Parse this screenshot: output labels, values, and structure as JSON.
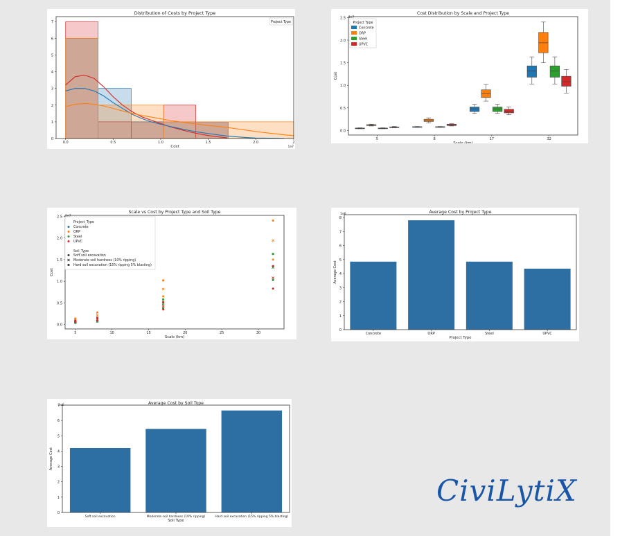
{
  "brand": {
    "logo_text": "CiviLytiX"
  },
  "colors": {
    "Concrete": "#1f77b4",
    "ORP": "#ff7f0e",
    "Steel": "#2ca02c",
    "UPVC": "#d62728",
    "bar": "#2e6fa3"
  },
  "chart_data": [
    {
      "type": "histogram",
      "title": "Distribution of Costs by Project Type",
      "xlabel": "Cost",
      "ylabel": "",
      "x_exponent": "1e7",
      "xlim": [
        -0.1,
        2.4
      ],
      "ylim": [
        0,
        7.3
      ],
      "xticks": [
        "0.0",
        "0.5",
        "1.0",
        "1.5",
        "2.0",
        "2"
      ],
      "xtick_values": [
        0,
        0.5,
        1.0,
        1.5,
        2.0,
        2.4
      ],
      "yticks": [
        0,
        1,
        2,
        3,
        4,
        5,
        6,
        7
      ],
      "legend_title": "Project Type",
      "series": [
        {
          "name": "UPVC",
          "color": "#d62728",
          "bins": [
            [
              0,
              0.34,
              7
            ],
            [
              0.34,
              1.03,
              1
            ],
            [
              1.03,
              1.37,
              2
            ],
            [
              1.37,
              1.71,
              1
            ]
          ],
          "kde": [
            [
              0,
              3.2
            ],
            [
              0.1,
              3.7
            ],
            [
              0.2,
              3.8
            ],
            [
              0.3,
              3.6
            ],
            [
              0.4,
              3.1
            ],
            [
              0.5,
              2.5
            ],
            [
              0.6,
              2.0
            ],
            [
              0.7,
              1.6
            ],
            [
              0.8,
              1.3
            ],
            [
              0.9,
              1.1
            ],
            [
              1.0,
              0.9
            ],
            [
              1.1,
              0.7
            ],
            [
              1.2,
              0.55
            ],
            [
              1.3,
              0.4
            ],
            [
              1.4,
              0.28
            ],
            [
              1.5,
              0.18
            ],
            [
              1.6,
              0.1
            ],
            [
              1.7,
              0.04
            ]
          ]
        },
        {
          "name": "Concrete",
          "color": "#1f77b4",
          "bins": [
            [
              0,
              0.34,
              6
            ],
            [
              0.34,
              0.69,
              3
            ],
            [
              0.69,
              1.03,
              1
            ],
            [
              1.03,
              1.71,
              1
            ]
          ],
          "kde": [
            [
              0,
              2.85
            ],
            [
              0.1,
              3.0
            ],
            [
              0.2,
              3.0
            ],
            [
              0.3,
              2.85
            ],
            [
              0.4,
              2.55
            ],
            [
              0.5,
              2.15
            ],
            [
              0.6,
              1.8
            ],
            [
              0.7,
              1.45
            ],
            [
              0.8,
              1.2
            ],
            [
              0.9,
              1.0
            ],
            [
              1.0,
              0.85
            ],
            [
              1.1,
              0.72
            ],
            [
              1.2,
              0.6
            ],
            [
              1.3,
              0.48
            ],
            [
              1.4,
              0.38
            ],
            [
              1.5,
              0.3
            ],
            [
              1.6,
              0.22
            ],
            [
              1.7,
              0.15
            ],
            [
              1.8,
              0.1
            ],
            [
              1.9,
              0.06
            ],
            [
              2.0,
              0.03
            ],
            [
              2.3,
              0.01
            ]
          ]
        },
        {
          "name": "ORP",
          "color": "#ff7f0e",
          "bins": [
            [
              0,
              0.34,
              6
            ],
            [
              0.34,
              1.03,
              2
            ],
            [
              1.03,
              1.71,
              1
            ],
            [
              1.71,
              2.4,
              1
            ]
          ],
          "kde": [
            [
              0,
              1.9
            ],
            [
              0.1,
              2.05
            ],
            [
              0.2,
              2.1
            ],
            [
              0.3,
              2.05
            ],
            [
              0.4,
              1.95
            ],
            [
              0.5,
              1.8
            ],
            [
              0.6,
              1.65
            ],
            [
              0.7,
              1.5
            ],
            [
              0.8,
              1.38
            ],
            [
              0.9,
              1.28
            ],
            [
              1.0,
              1.18
            ],
            [
              1.1,
              1.08
            ],
            [
              1.2,
              1.0
            ],
            [
              1.3,
              0.92
            ],
            [
              1.4,
              0.85
            ],
            [
              1.5,
              0.78
            ],
            [
              1.6,
              0.72
            ],
            [
              1.7,
              0.66
            ],
            [
              1.8,
              0.58
            ],
            [
              1.9,
              0.5
            ],
            [
              2.0,
              0.42
            ],
            [
              2.1,
              0.35
            ],
            [
              2.2,
              0.28
            ],
            [
              2.3,
              0.22
            ],
            [
              2.4,
              0.17
            ]
          ]
        }
      ]
    },
    {
      "type": "box",
      "title": "Cost Distribution by Scale and Project Type",
      "xlabel": "Scale (km)",
      "ylabel": "Cost",
      "y_exponent": "1e7",
      "ylim": [
        -0.1,
        2.52
      ],
      "yticks": [
        "0.0",
        "0.5",
        "1.0",
        "1.5",
        "2.0",
        "2.5"
      ],
      "ytick_values": [
        0,
        0.5,
        1.0,
        1.5,
        2.0,
        2.5
      ],
      "categories": [
        "5",
        "8",
        "17",
        "32"
      ],
      "legend_title": "Project Type",
      "series_names": [
        "Concrete",
        "ORP",
        "Steel",
        "UPVC"
      ],
      "boxes": [
        {
          "category": "5",
          "series": "Concrete",
          "stats": [
            0.04,
            0.045,
            0.05,
            0.055,
            0.06
          ]
        },
        {
          "category": "5",
          "series": "ORP",
          "stats": [
            0.1,
            0.11,
            0.12,
            0.13,
            0.14
          ]
        },
        {
          "category": "5",
          "series": "Steel",
          "stats": [
            0.04,
            0.045,
            0.05,
            0.055,
            0.06
          ]
        },
        {
          "category": "5",
          "series": "UPVC",
          "stats": [
            0.06,
            0.065,
            0.075,
            0.08,
            0.09
          ]
        },
        {
          "category": "8",
          "series": "Concrete",
          "stats": [
            0.07,
            0.075,
            0.08,
            0.085,
            0.09
          ]
        },
        {
          "category": "8",
          "series": "ORP",
          "stats": [
            0.17,
            0.2,
            0.22,
            0.25,
            0.28
          ]
        },
        {
          "category": "8",
          "series": "Steel",
          "stats": [
            0.07,
            0.075,
            0.08,
            0.085,
            0.09
          ]
        },
        {
          "category": "8",
          "series": "UPVC",
          "stats": [
            0.1,
            0.11,
            0.12,
            0.14,
            0.15
          ]
        },
        {
          "category": "17",
          "series": "Concrete",
          "stats": [
            0.38,
            0.42,
            0.48,
            0.52,
            0.58
          ]
        },
        {
          "category": "17",
          "series": "ORP",
          "stats": [
            0.65,
            0.73,
            0.82,
            0.9,
            1.02
          ]
        },
        {
          "category": "17",
          "series": "Steel",
          "stats": [
            0.38,
            0.42,
            0.48,
            0.52,
            0.58
          ]
        },
        {
          "category": "17",
          "series": "UPVC",
          "stats": [
            0.35,
            0.39,
            0.43,
            0.47,
            0.52
          ]
        },
        {
          "category": "32",
          "series": "Concrete",
          "stats": [
            1.03,
            1.18,
            1.32,
            1.43,
            1.63
          ]
        },
        {
          "category": "32",
          "series": "ORP",
          "stats": [
            1.5,
            1.72,
            1.94,
            2.17,
            2.4
          ]
        },
        {
          "category": "32",
          "series": "Steel",
          "stats": [
            1.03,
            1.18,
            1.32,
            1.43,
            1.63
          ]
        },
        {
          "category": "32",
          "series": "UPVC",
          "stats": [
            0.83,
            0.98,
            1.08,
            1.2,
            1.35
          ]
        }
      ]
    },
    {
      "type": "scatter",
      "title": "Scale vs Cost by Project Type and Soil Type",
      "xlabel": "Scale (km)",
      "ylabel": "Cost",
      "y_exponent": "1e7",
      "xlim": [
        3.6,
        33.5
      ],
      "ylim": [
        -0.1,
        2.52
      ],
      "xticks": [
        5,
        10,
        15,
        20,
        25,
        30
      ],
      "yticks": [
        "0.0",
        "0.5",
        "1.0",
        "1.5",
        "2.0",
        "2.5"
      ],
      "ytick_values": [
        0,
        0.5,
        1.0,
        1.5,
        2.0,
        2.5
      ],
      "legend": {
        "hue_title": "Project_Type",
        "hue_items": [
          "Concrete",
          "ORP",
          "Steel",
          "UPVC"
        ],
        "style_title": "Soil_Type",
        "style_items": [
          "Soft soil excavation",
          "Moderate soil hardness (10% ripping)",
          "Hard soil excavation (15% ripping 5% blasting)"
        ]
      },
      "points": [
        {
          "series": "Concrete",
          "x": 5,
          "y": [
            0.04,
            0.05,
            0.06
          ]
        },
        {
          "series": "ORP",
          "x": 5,
          "y": [
            0.1,
            0.12,
            0.14
          ]
        },
        {
          "series": "Steel",
          "x": 5,
          "y": [
            0.04,
            0.05,
            0.06
          ]
        },
        {
          "series": "UPVC",
          "x": 5,
          "y": [
            0.06,
            0.075,
            0.09
          ]
        },
        {
          "series": "Concrete",
          "x": 8,
          "y": [
            0.07,
            0.08,
            0.09
          ]
        },
        {
          "series": "ORP",
          "x": 8,
          "y": [
            0.17,
            0.22,
            0.28
          ]
        },
        {
          "series": "Steel",
          "x": 8,
          "y": [
            0.07,
            0.08,
            0.09
          ]
        },
        {
          "series": "UPVC",
          "x": 8,
          "y": [
            0.1,
            0.12,
            0.15
          ]
        },
        {
          "series": "Concrete",
          "x": 17,
          "y": [
            0.38,
            0.48,
            0.58
          ]
        },
        {
          "series": "ORP",
          "x": 17,
          "y": [
            0.65,
            0.82,
            1.02
          ]
        },
        {
          "series": "Steel",
          "x": 17,
          "y": [
            0.38,
            0.48,
            0.58
          ]
        },
        {
          "series": "UPVC",
          "x": 17,
          "y": [
            0.35,
            0.43,
            0.52
          ]
        },
        {
          "series": "Concrete",
          "x": 32,
          "y": [
            1.03,
            1.32,
            1.63
          ]
        },
        {
          "series": "ORP",
          "x": 32,
          "y": [
            1.5,
            1.94,
            2.4
          ]
        },
        {
          "series": "Steel",
          "x": 32,
          "y": [
            1.03,
            1.32,
            1.63
          ]
        },
        {
          "series": "UPVC",
          "x": 32,
          "y": [
            0.83,
            1.08,
            1.35
          ]
        }
      ]
    },
    {
      "type": "bar",
      "title": "Average Cost by Project Type",
      "xlabel": "Project Type",
      "ylabel": "Average Cost",
      "y_exponent": "1e6",
      "categories": [
        "Concrete",
        "ORP",
        "Steel",
        "UPVC"
      ],
      "values": [
        4.85,
        7.8,
        4.85,
        4.35
      ],
      "ylim": [
        0,
        8.2
      ],
      "yticks": [
        0,
        1,
        2,
        3,
        4,
        5,
        6,
        7,
        8
      ]
    },
    {
      "type": "bar",
      "title": "Average Cost by Soil Type",
      "xlabel": "Soil Type",
      "ylabel": "Average Cost",
      "y_exponent": "1e6",
      "categories": [
        "Soft soil excavation",
        "Moderate soil hardness (10% ripping)",
        "Hard soil excavation (15% ripping 5% blasting)"
      ],
      "values": [
        4.2,
        5.45,
        6.65
      ],
      "ylim": [
        0,
        7.0
      ],
      "yticks": [
        0,
        1,
        2,
        3,
        4,
        5,
        6,
        7
      ]
    }
  ]
}
